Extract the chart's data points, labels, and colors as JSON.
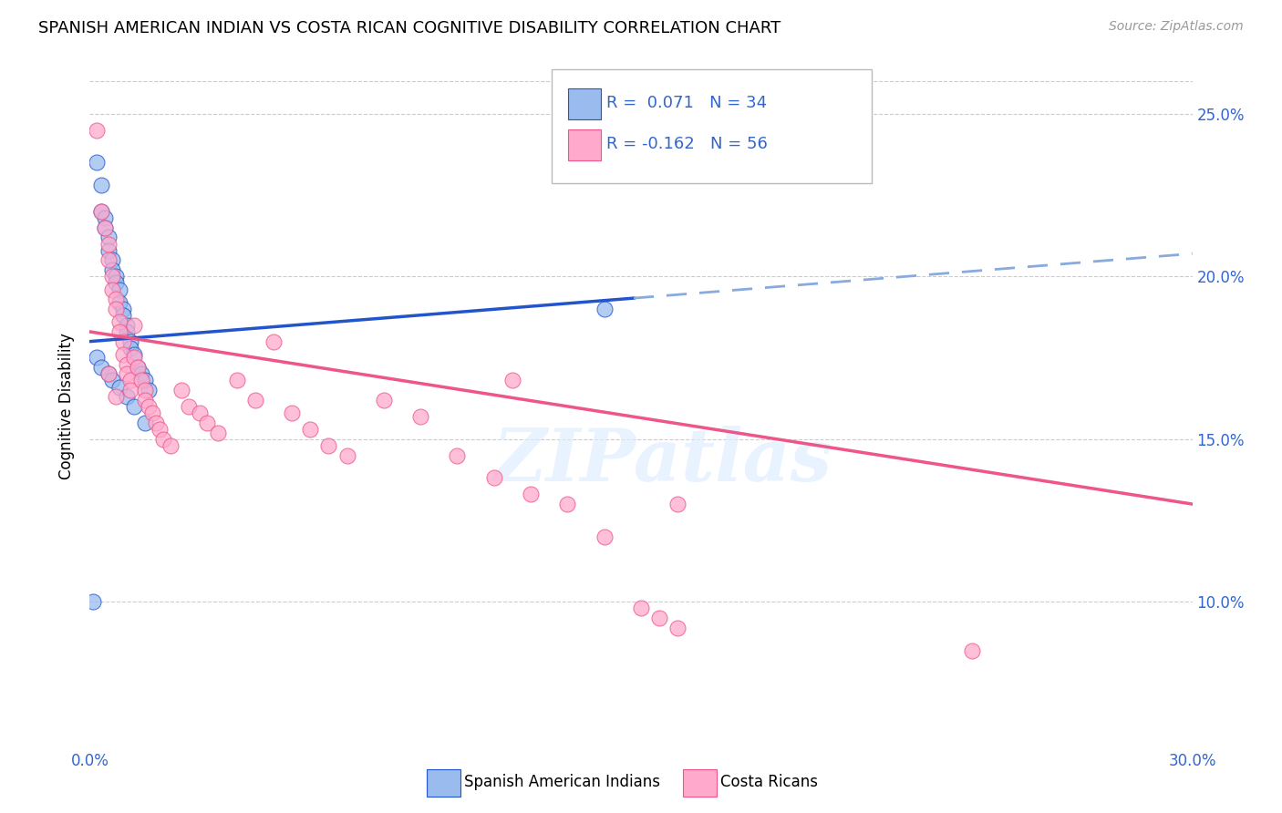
{
  "title": "SPANISH AMERICAN INDIAN VS COSTA RICAN COGNITIVE DISABILITY CORRELATION CHART",
  "source": "Source: ZipAtlas.com",
  "ylabel": "Cognitive Disability",
  "x_min": 0.0,
  "x_max": 0.3,
  "y_min": 0.055,
  "y_max": 0.265,
  "x_ticks": [
    0.0,
    0.3
  ],
  "x_tick_labels": [
    "0.0%",
    "30.0%"
  ],
  "y_ticks": [
    0.1,
    0.15,
    0.2,
    0.25
  ],
  "y_tick_labels": [
    "10.0%",
    "15.0%",
    "20.0%",
    "25.0%"
  ],
  "legend_r_blue": "0.071",
  "legend_n_blue": "34",
  "legend_r_pink": "-0.162",
  "legend_n_pink": "56",
  "legend_label_blue": "Spanish American Indians",
  "legend_label_pink": "Costa Ricans",
  "blue_color": "#99BBEE",
  "pink_color": "#FFAACC",
  "trend_blue_solid_color": "#2255CC",
  "trend_blue_dashed_color": "#88AADD",
  "trend_pink_color": "#EE5588",
  "watermark": "ZIPatlas",
  "blue_x": [
    0.002,
    0.003,
    0.003,
    0.004,
    0.004,
    0.005,
    0.005,
    0.006,
    0.006,
    0.007,
    0.007,
    0.008,
    0.008,
    0.009,
    0.009,
    0.01,
    0.01,
    0.011,
    0.011,
    0.012,
    0.013,
    0.014,
    0.015,
    0.016,
    0.002,
    0.003,
    0.005,
    0.006,
    0.008,
    0.01,
    0.012,
    0.015,
    0.14,
    0.001
  ],
  "blue_y": [
    0.235,
    0.228,
    0.22,
    0.218,
    0.215,
    0.212,
    0.208,
    0.205,
    0.202,
    0.2,
    0.198,
    0.196,
    0.192,
    0.19,
    0.188,
    0.185,
    0.183,
    0.18,
    0.178,
    0.176,
    0.172,
    0.17,
    0.168,
    0.165,
    0.175,
    0.172,
    0.17,
    0.168,
    0.166,
    0.163,
    0.16,
    0.155,
    0.19,
    0.1
  ],
  "pink_x": [
    0.002,
    0.003,
    0.004,
    0.005,
    0.005,
    0.006,
    0.006,
    0.007,
    0.007,
    0.008,
    0.008,
    0.009,
    0.009,
    0.01,
    0.01,
    0.011,
    0.011,
    0.012,
    0.012,
    0.013,
    0.014,
    0.015,
    0.015,
    0.016,
    0.017,
    0.018,
    0.019,
    0.02,
    0.022,
    0.025,
    0.027,
    0.03,
    0.032,
    0.035,
    0.04,
    0.045,
    0.05,
    0.055,
    0.06,
    0.065,
    0.07,
    0.08,
    0.09,
    0.1,
    0.11,
    0.115,
    0.12,
    0.13,
    0.14,
    0.15,
    0.155,
    0.16,
    0.005,
    0.007,
    0.24,
    0.16
  ],
  "pink_y": [
    0.245,
    0.22,
    0.215,
    0.21,
    0.205,
    0.2,
    0.196,
    0.193,
    0.19,
    0.186,
    0.183,
    0.18,
    0.176,
    0.173,
    0.17,
    0.168,
    0.165,
    0.185,
    0.175,
    0.172,
    0.168,
    0.165,
    0.162,
    0.16,
    0.158,
    0.155,
    0.153,
    0.15,
    0.148,
    0.165,
    0.16,
    0.158,
    0.155,
    0.152,
    0.168,
    0.162,
    0.18,
    0.158,
    0.153,
    0.148,
    0.145,
    0.162,
    0.157,
    0.145,
    0.138,
    0.168,
    0.133,
    0.13,
    0.12,
    0.098,
    0.095,
    0.092,
    0.17,
    0.163,
    0.085,
    0.13
  ],
  "blue_trend_start_x": 0.0,
  "blue_trend_solid_end_x": 0.148,
  "blue_trend_end_x": 0.3,
  "blue_trend_start_y": 0.18,
  "blue_trend_end_y": 0.207,
  "pink_trend_start_x": 0.0,
  "pink_trend_end_x": 0.3,
  "pink_trend_start_y": 0.183,
  "pink_trend_end_y": 0.13
}
